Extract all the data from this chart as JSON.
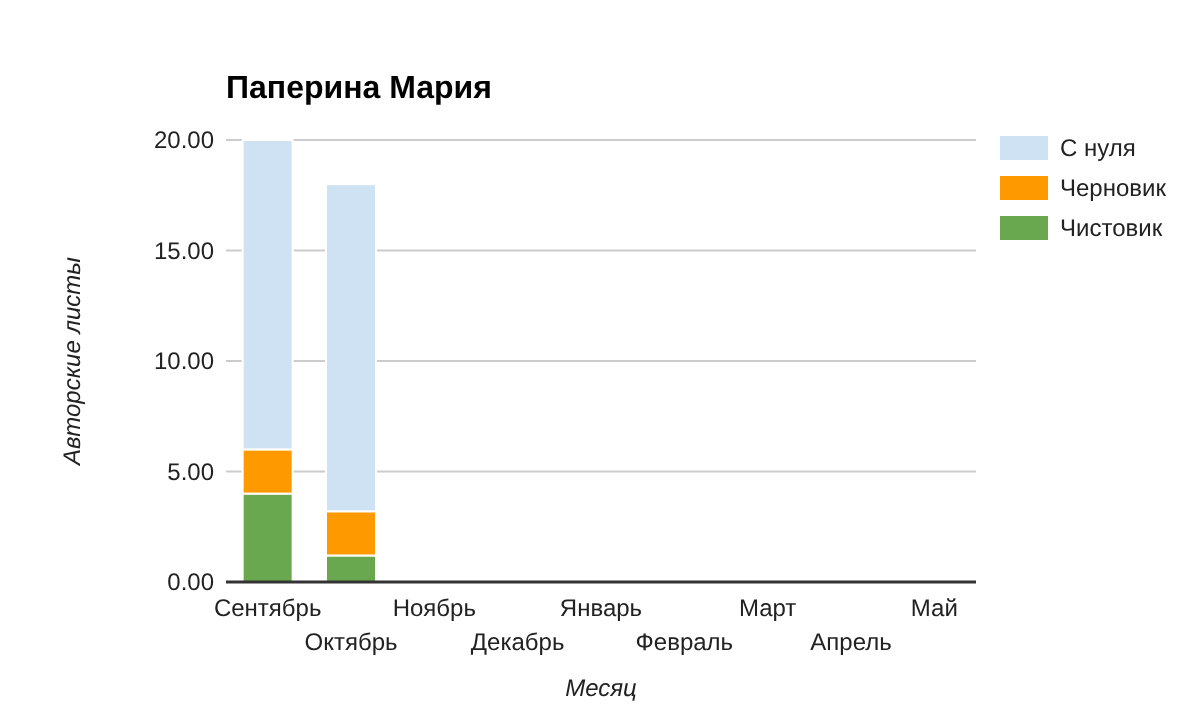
{
  "chart_data": {
    "type": "bar",
    "title": "Паперина Мария",
    "xlabel": "Месяц",
    "ylabel": "Авторские листы",
    "categories": [
      "Сентябрь",
      "Октябрь",
      "Ноябрь",
      "Декабрь",
      "Январь",
      "Февраль",
      "Март",
      "Апрель",
      "Май"
    ],
    "series": [
      {
        "name": "Чистовик",
        "color": "#6aa84f",
        "values": [
          4,
          1.2,
          0,
          0,
          0,
          0,
          0,
          0,
          0
        ]
      },
      {
        "name": "Черновик",
        "color": "#ff9900",
        "values": [
          2,
          2,
          0,
          0,
          0,
          0,
          0,
          0,
          0
        ]
      },
      {
        "name": "С нуля",
        "color": "#cfe2f3",
        "values": [
          14,
          14.8,
          0,
          0,
          0,
          0,
          0,
          0,
          0
        ]
      }
    ],
    "stacked": true,
    "ylim": [
      0,
      20
    ],
    "yticks": [
      {
        "value": 0,
        "label": "0.00"
      },
      {
        "value": 5,
        "label": "5.00"
      },
      {
        "value": 10,
        "label": "10.00"
      },
      {
        "value": 15,
        "label": "15.00"
      },
      {
        "value": 20,
        "label": "20.00"
      }
    ],
    "grid": "y",
    "legend": "right"
  }
}
